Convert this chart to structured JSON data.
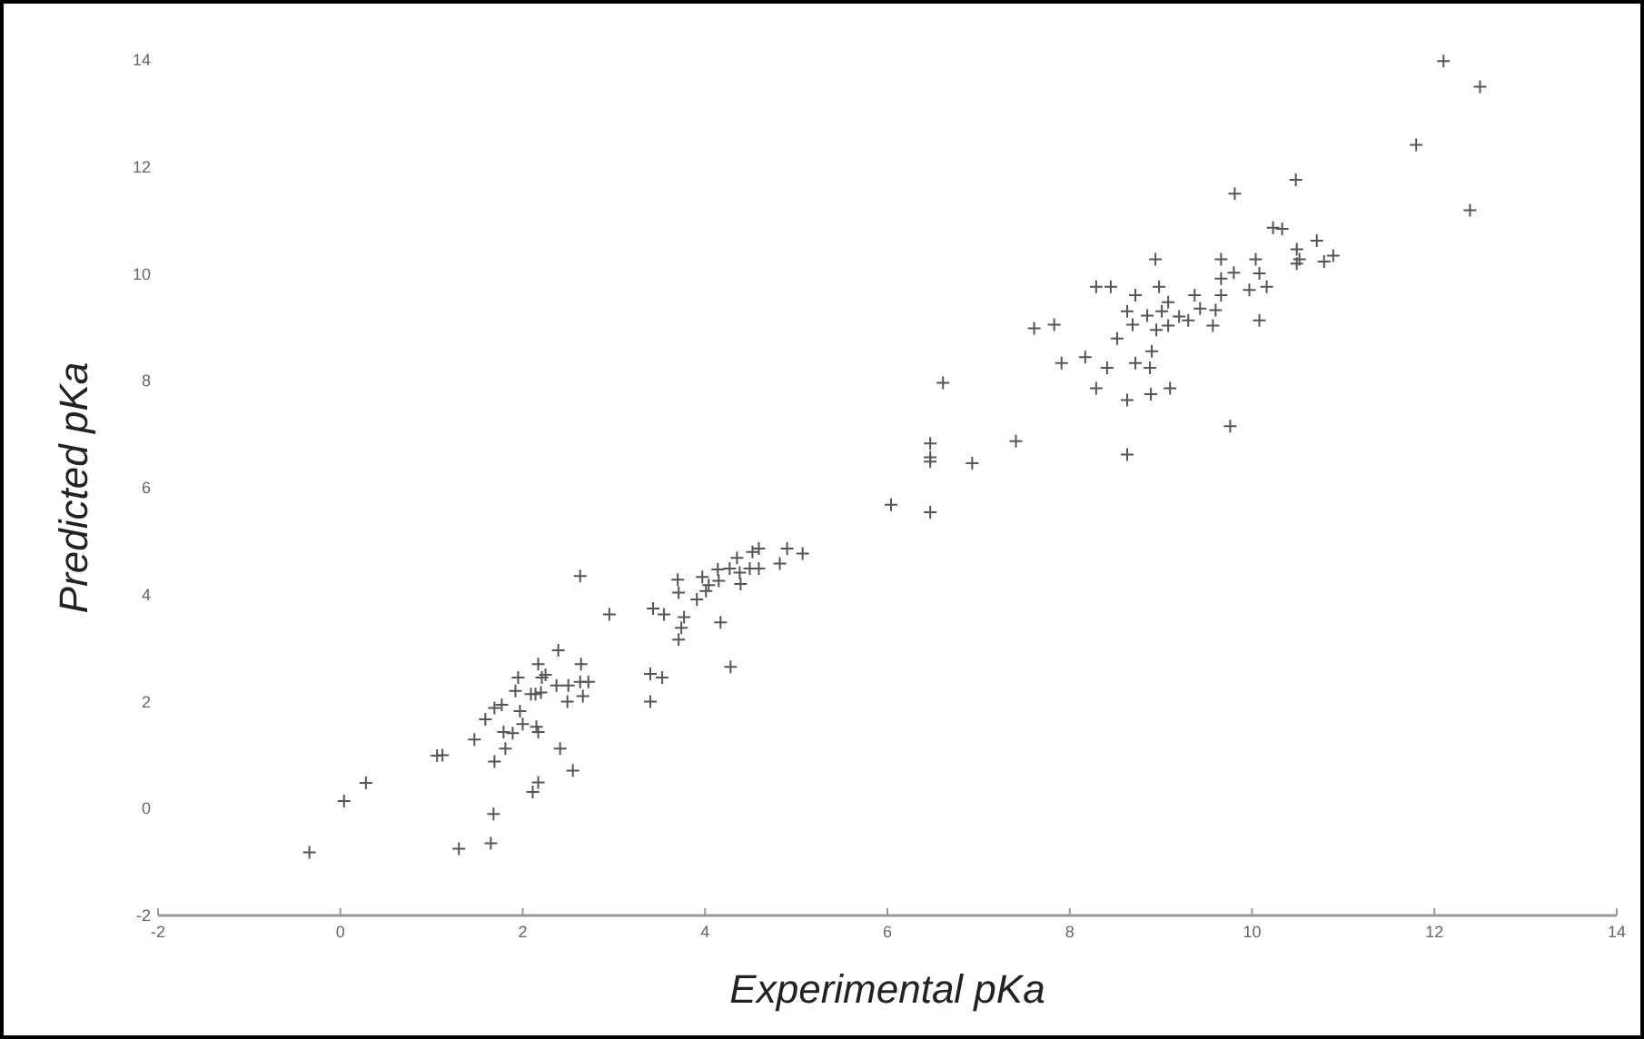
{
  "chart_data": {
    "type": "scatter",
    "xlabel": "Experimental pKa",
    "ylabel": "Predicted pKa",
    "xlim": [
      -2,
      14
    ],
    "ylim": [
      -2,
      14
    ],
    "xticks": [
      -2,
      0,
      2,
      4,
      6,
      8,
      10,
      12,
      14
    ],
    "yticks": [
      -2,
      0,
      2,
      4,
      6,
      8,
      10,
      12,
      14
    ],
    "marker": "cross",
    "grid": false,
    "series": [
      {
        "color": "#555555",
        "x": [
          -0.34,
          0.04,
          0.28,
          1.06,
          1.12,
          1.3,
          1.65,
          1.68,
          1.47,
          1.69,
          1.81,
          2.11,
          2.17,
          2.41,
          2.55,
          2.63,
          2.95,
          1.59,
          1.69,
          1.77,
          1.95,
          1.92,
          1.79,
          1.89,
          2.0,
          2.15,
          2.17,
          2.09,
          2.14,
          2.21,
          2.25,
          2.17,
          2.39,
          2.37,
          2.5,
          2.63,
          2.72,
          2.64,
          2.49,
          2.66,
          1.97,
          2.2,
          3.4,
          3.53,
          3.4,
          3.43,
          3.55,
          3.71,
          3.74,
          3.77,
          3.7,
          3.71,
          3.91,
          3.97,
          4.01,
          4.04,
          4.14,
          4.15,
          4.17,
          4.27,
          4.28,
          4.35,
          4.38,
          4.39,
          4.49,
          4.52,
          4.59,
          4.59,
          4.82,
          4.9,
          5.07,
          6.04,
          6.47,
          6.47,
          6.47,
          6.47,
          6.61,
          6.93,
          7.41,
          7.61,
          7.83,
          7.91,
          8.17,
          8.29,
          8.29,
          8.45,
          8.41,
          8.52,
          8.63,
          8.63,
          8.63,
          8.72,
          8.69,
          8.72,
          8.85,
          8.9,
          8.88,
          8.89,
          8.94,
          8.95,
          8.98,
          9.01,
          9.08,
          9.08,
          9.1,
          9.2,
          9.3,
          9.37,
          9.43,
          9.6,
          9.57,
          9.66,
          9.66,
          9.66,
          9.76,
          9.8,
          9.81,
          9.97,
          10.04,
          10.08,
          10.08,
          10.16,
          10.23,
          10.33,
          10.48,
          10.49,
          10.49,
          10.52,
          10.71,
          10.79,
          10.89,
          11.8,
          12.1,
          12.5,
          12.39
        ],
        "values": [
          -0.82,
          0.14,
          0.48,
          0.99,
          1.0,
          -0.75,
          -0.65,
          -0.1,
          1.29,
          0.88,
          1.12,
          0.31,
          0.49,
          1.12,
          0.71,
          4.35,
          3.63,
          1.67,
          1.88,
          1.94,
          2.45,
          2.2,
          1.43,
          1.41,
          1.58,
          1.53,
          1.43,
          2.14,
          2.14,
          2.45,
          2.5,
          2.7,
          2.96,
          2.3,
          2.3,
          2.37,
          2.37,
          2.7,
          2.0,
          2.1,
          1.82,
          2.17,
          2.52,
          2.45,
          2.0,
          3.74,
          3.63,
          3.16,
          3.38,
          3.58,
          4.28,
          4.04,
          3.91,
          4.33,
          4.07,
          4.18,
          4.47,
          4.26,
          3.48,
          4.49,
          2.65,
          4.69,
          4.41,
          4.2,
          4.49,
          4.8,
          4.86,
          4.49,
          4.58,
          4.86,
          4.77,
          5.68,
          5.54,
          6.83,
          6.57,
          6.49,
          7.96,
          6.46,
          6.87,
          8.98,
          9.05,
          8.33,
          8.44,
          7.86,
          9.76,
          9.76,
          8.24,
          8.79,
          7.64,
          6.62,
          9.3,
          9.6,
          9.05,
          8.33,
          9.22,
          8.55,
          8.24,
          7.75,
          10.27,
          8.95,
          9.76,
          9.3,
          9.47,
          9.03,
          7.86,
          9.2,
          9.13,
          9.6,
          9.35,
          9.32,
          9.03,
          10.27,
          9.91,
          9.6,
          7.15,
          10.02,
          11.5,
          9.7,
          10.27,
          10.01,
          9.13,
          9.76,
          10.86,
          10.84,
          11.76,
          10.46,
          10.19,
          10.27,
          10.62,
          10.23,
          10.34,
          12.41,
          13.98,
          13.5,
          11.19
        ]
      }
    ]
  }
}
